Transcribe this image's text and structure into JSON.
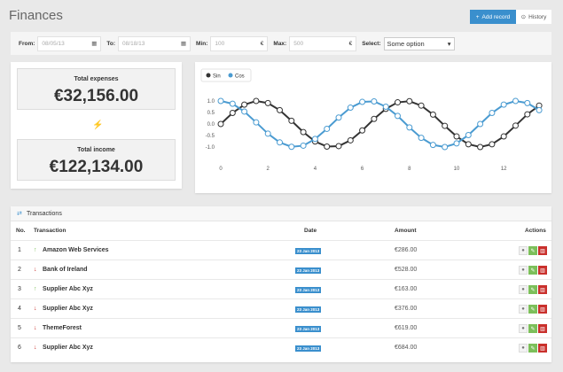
{
  "header": {
    "title": "Finances",
    "add_label": "Add record",
    "history_label": "History"
  },
  "filters": {
    "from_label": "From:",
    "from_value": "08/05/13",
    "to_label": "To:",
    "to_value": "08/18/13",
    "min_label": "Min:",
    "min_value": "100",
    "max_label": "Max:",
    "max_value": "500",
    "currency": "€",
    "select_label": "Select:",
    "select_value": "Some option"
  },
  "stats": {
    "expenses_label": "Total expenses",
    "expenses_value": "€32,156.00",
    "income_label": "Total income",
    "income_value": "€122,134.00"
  },
  "colors": {
    "accent": "#3a8fcd",
    "sin": "#333333",
    "cos": "#4a9bd1",
    "up": "#7cbf5a",
    "down": "#c9302c"
  },
  "chart_data": {
    "type": "line",
    "legend_position": "top-left",
    "grid": false,
    "x": [
      0,
      0.5,
      1,
      1.5,
      2,
      2.5,
      3,
      3.5,
      4,
      4.5,
      5,
      5.5,
      6,
      6.5,
      7,
      7.5,
      8,
      8.5,
      9,
      9.5,
      10,
      10.5,
      11,
      11.5,
      12,
      12.5,
      13,
      13.5
    ],
    "series": [
      {
        "name": "Sin",
        "values": [
          0,
          0.48,
          0.84,
          1.0,
          0.91,
          0.6,
          0.14,
          -0.35,
          -0.76,
          -0.98,
          -0.96,
          -0.71,
          -0.28,
          0.22,
          0.66,
          0.94,
          0.99,
          0.8,
          0.41,
          -0.08,
          -0.54,
          -0.88,
          -1.0,
          -0.88,
          -0.54,
          -0.07,
          0.42,
          0.8
        ]
      },
      {
        "name": "Cos",
        "values": [
          1,
          0.88,
          0.54,
          0.07,
          -0.42,
          -0.8,
          -0.99,
          -0.94,
          -0.65,
          -0.21,
          0.28,
          0.71,
          0.96,
          0.98,
          0.75,
          0.35,
          -0.15,
          -0.6,
          -0.91,
          -1.0,
          -0.84,
          -0.48,
          0.0,
          0.48,
          0.84,
          1.0,
          0.91,
          0.6
        ]
      }
    ],
    "xticks": [
      "0",
      "2",
      "4",
      "6",
      "8",
      "10",
      "12"
    ],
    "yticks": [
      "1.0",
      "0.5",
      "0.0",
      "-0.5",
      "-1.0"
    ],
    "xlim": [
      0,
      13.5
    ],
    "ylim": [
      -1,
      1
    ]
  },
  "table": {
    "title": "Transactions",
    "headers": {
      "no": "No.",
      "transaction": "Transaction",
      "date": "Date",
      "amount": "Amount",
      "actions": "Actions"
    },
    "rows": [
      {
        "no": "1",
        "name": "Amazon Web Services",
        "dir": "up",
        "date": "23 Jan 2013",
        "amount": "€286.00"
      },
      {
        "no": "2",
        "name": "Bank of Ireland",
        "dir": "down",
        "date": "23 Jan 2013",
        "amount": "€528.00"
      },
      {
        "no": "3",
        "name": "Supplier Abc Xyz",
        "dir": "up",
        "date": "23 Jan 2013",
        "amount": "€163.00"
      },
      {
        "no": "4",
        "name": "Supplier Abc Xyz",
        "dir": "down",
        "date": "23 Jan 2013",
        "amount": "€376.00"
      },
      {
        "no": "5",
        "name": "ThemeForest",
        "dir": "down",
        "date": "23 Jan 2013",
        "amount": "€619.00"
      },
      {
        "no": "6",
        "name": "Supplier Abc Xyz",
        "dir": "down",
        "date": "23 Jan 2013",
        "amount": "€684.00"
      }
    ]
  }
}
